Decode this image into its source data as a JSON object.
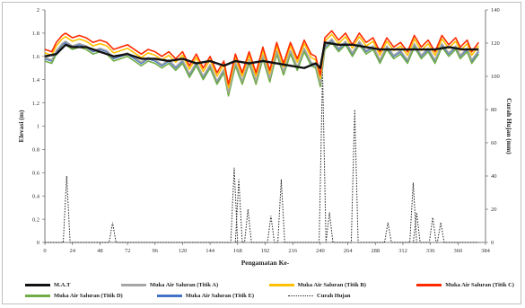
{
  "chart_data": {
    "type": "line",
    "xlabel": "Pengamatan Ke-",
    "ylabel": "Elevasi (m)",
    "y2label": "Curah Hujan (mm)",
    "xlim": [
      0,
      384
    ],
    "ylim": [
      0,
      2
    ],
    "y2lim": [
      0,
      140
    ],
    "x_ticks": [
      "0",
      "24",
      "48",
      "72",
      "96",
      "120",
      "144",
      "168",
      "192",
      "216",
      "240",
      "264",
      "288",
      "312",
      "336",
      "360",
      "384"
    ],
    "y_ticks": [
      "0",
      "0.2",
      "0.4",
      "0.6",
      "0.8",
      "1",
      "1.2",
      "1.4",
      "1.6",
      "1.8",
      "2"
    ],
    "y2_ticks": [
      "0",
      "20",
      "40",
      "60",
      "80",
      "100",
      "120",
      "140"
    ],
    "grid": false,
    "legend_position": "bottom",
    "series": [
      {
        "name": "M.A.T",
        "color": "#111111",
        "style": "solid",
        "width": 2.4
      },
      {
        "name": "Muka Air Saluran (Titik A)",
        "color": "#a6a6a6",
        "style": "solid",
        "width": 1.6
      },
      {
        "name": "Muka Air Saluran (Titik B)",
        "color": "#ffc000",
        "style": "solid",
        "width": 1.6
      },
      {
        "name": "Muka Air Saluran (Titik C)",
        "color": "#ff2a00",
        "style": "solid",
        "width": 1.6
      },
      {
        "name": "Muka Air Saluran (Titik D)",
        "color": "#70ad47",
        "style": "solid",
        "width": 1.6
      },
      {
        "name": "Muka Air Saluran (Titik E)",
        "color": "#4472c4",
        "style": "solid",
        "width": 1.6
      },
      {
        "name": "Curah Hujan",
        "color": "#222222",
        "style": "dotted",
        "width": 1,
        "axis": "secondary"
      }
    ],
    "red_profile": [
      [
        0,
        1.66
      ],
      [
        6,
        1.64
      ],
      [
        10,
        1.72
      ],
      [
        15,
        1.78
      ],
      [
        18,
        1.8
      ],
      [
        24,
        1.76
      ],
      [
        30,
        1.78
      ],
      [
        36,
        1.76
      ],
      [
        42,
        1.72
      ],
      [
        48,
        1.74
      ],
      [
        54,
        1.72
      ],
      [
        60,
        1.66
      ],
      [
        66,
        1.68
      ],
      [
        72,
        1.7
      ],
      [
        78,
        1.66
      ],
      [
        84,
        1.62
      ],
      [
        90,
        1.66
      ],
      [
        96,
        1.64
      ],
      [
        102,
        1.6
      ],
      [
        108,
        1.64
      ],
      [
        114,
        1.58
      ],
      [
        120,
        1.64
      ],
      [
        126,
        1.52
      ],
      [
        132,
        1.62
      ],
      [
        138,
        1.5
      ],
      [
        144,
        1.6
      ],
      [
        150,
        1.46
      ],
      [
        156,
        1.56
      ],
      [
        160,
        1.36
      ],
      [
        166,
        1.62
      ],
      [
        172,
        1.46
      ],
      [
        178,
        1.64
      ],
      [
        184,
        1.46
      ],
      [
        190,
        1.68
      ],
      [
        196,
        1.48
      ],
      [
        202,
        1.72
      ],
      [
        208,
        1.54
      ],
      [
        214,
        1.72
      ],
      [
        220,
        1.58
      ],
      [
        226,
        1.74
      ],
      [
        232,
        1.62
      ],
      [
        236,
        1.6
      ],
      [
        240,
        1.44
      ],
      [
        244,
        1.76
      ],
      [
        250,
        1.82
      ],
      [
        256,
        1.74
      ],
      [
        262,
        1.8
      ],
      [
        268,
        1.7
      ],
      [
        274,
        1.8
      ],
      [
        280,
        1.72
      ],
      [
        286,
        1.76
      ],
      [
        292,
        1.64
      ],
      [
        298,
        1.76
      ],
      [
        304,
        1.68
      ],
      [
        310,
        1.72
      ],
      [
        316,
        1.64
      ],
      [
        322,
        1.78
      ],
      [
        328,
        1.68
      ],
      [
        334,
        1.74
      ],
      [
        340,
        1.64
      ],
      [
        346,
        1.78
      ],
      [
        352,
        1.7
      ],
      [
        358,
        1.76
      ],
      [
        362,
        1.68
      ],
      [
        368,
        1.74
      ],
      [
        372,
        1.64
      ],
      [
        378,
        1.72
      ]
    ],
    "series_offsets": [
      0,
      -0.07,
      -0.03,
      0,
      -0.1,
      -0.08
    ],
    "mat_profile": [
      [
        0,
        1.6
      ],
      [
        10,
        1.62
      ],
      [
        18,
        1.7
      ],
      [
        24,
        1.68
      ],
      [
        36,
        1.68
      ],
      [
        48,
        1.64
      ],
      [
        60,
        1.6
      ],
      [
        72,
        1.62
      ],
      [
        84,
        1.58
      ],
      [
        96,
        1.58
      ],
      [
        108,
        1.56
      ],
      [
        120,
        1.58
      ],
      [
        132,
        1.54
      ],
      [
        144,
        1.56
      ],
      [
        156,
        1.52
      ],
      [
        166,
        1.56
      ],
      [
        178,
        1.54
      ],
      [
        190,
        1.56
      ],
      [
        202,
        1.54
      ],
      [
        214,
        1.52
      ],
      [
        226,
        1.5
      ],
      [
        236,
        1.54
      ],
      [
        240,
        1.5
      ],
      [
        244,
        1.72
      ],
      [
        256,
        1.7
      ],
      [
        268,
        1.7
      ],
      [
        280,
        1.68
      ],
      [
        292,
        1.66
      ],
      [
        304,
        1.66
      ],
      [
        316,
        1.66
      ],
      [
        328,
        1.66
      ],
      [
        340,
        1.66
      ],
      [
        352,
        1.68
      ],
      [
        364,
        1.66
      ],
      [
        378,
        1.66
      ]
    ],
    "rain_events": [
      [
        19,
        40
      ],
      [
        59,
        12
      ],
      [
        165,
        45
      ],
      [
        169,
        38
      ],
      [
        177,
        20
      ],
      [
        197,
        16
      ],
      [
        206,
        38
      ],
      [
        242,
        103
      ],
      [
        248,
        18
      ],
      [
        270,
        80
      ],
      [
        299,
        12
      ],
      [
        321,
        36
      ],
      [
        324,
        18
      ],
      [
        338,
        15
      ],
      [
        345,
        12
      ]
    ]
  }
}
